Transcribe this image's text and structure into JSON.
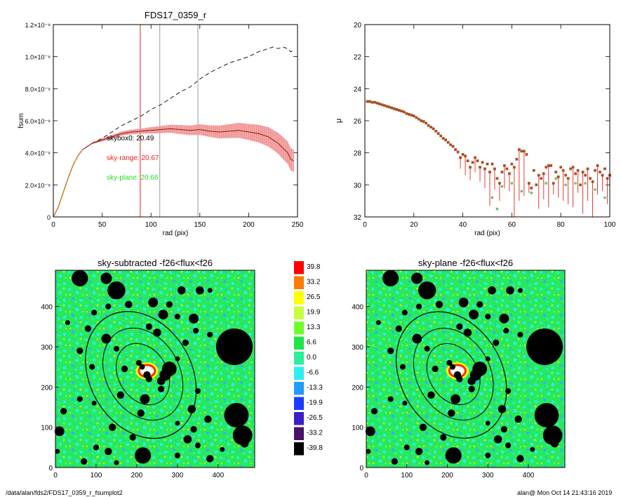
{
  "footer": {
    "path": "/data/alan/fds2/FDS17_0359_r_fsumplot2",
    "stamp": "alan@  Mon Oct 14 21:43:16 2019"
  },
  "colors": {
    "black": "#000000",
    "red_line": "#e8241f",
    "red_band": "#f2a3a3",
    "dark_red": "#8b1a10",
    "orange": "#c8781c",
    "green_text": "#22dd22",
    "grey_line": "#999999",
    "green_field": "#28e85c",
    "cyan_field": "#29f0d8"
  },
  "chart_data": [
    {
      "id": "fsum",
      "type": "line",
      "title": "FDS17_0359_r",
      "xlabel": "rad (pix)",
      "ylabel": "fsum",
      "xlim": [
        0,
        250
      ],
      "ylim": [
        0,
        1.2e-08
      ],
      "x_ticks": [
        0,
        50,
        100,
        150,
        200,
        250
      ],
      "x_tick_labels": [
        "0",
        "50",
        "100",
        "150",
        "200",
        "250"
      ],
      "y_ticks": [
        0,
        2e-09,
        4e-09,
        6e-09,
        8e-09,
        1e-08,
        1.2e-08
      ],
      "y_tick_labels": [
        "0",
        "2.0×10⁻⁹",
        "4.0×10⁻⁹",
        "6.0×10⁻⁹",
        "8.0×10⁻⁹",
        "1.0×10⁻⁸",
        "1.2×10⁻⁸"
      ],
      "vlines": [
        {
          "x": 89,
          "color": "red"
        },
        {
          "x": 109,
          "color": "grey"
        },
        {
          "x": 148,
          "color": "grey"
        }
      ],
      "annotations": [
        {
          "label": "skybox0",
          "value": "20.49",
          "text": "skybox0: 20.49",
          "color": "black"
        },
        {
          "label": "sky-range",
          "value": "20.67",
          "text": "sky-range: 20.67",
          "color": "red"
        },
        {
          "label": "sky-plane",
          "value": "20.66",
          "text": "sky-plane: 20.66",
          "color": "green"
        }
      ],
      "series": [
        {
          "style": "dashed-black",
          "x": [
            0,
            5,
            10,
            15,
            20,
            25,
            30,
            40,
            50,
            60,
            70,
            80,
            90,
            100,
            110,
            120,
            130,
            140,
            150,
            160,
            170,
            180,
            190,
            200,
            210,
            215,
            220,
            225,
            230,
            235,
            240,
            243,
            246
          ],
          "y": [
            0,
            6e-10,
            1.5e-09,
            2.4e-09,
            3.2e-09,
            3.8e-09,
            4.2e-09,
            4.6e-09,
            4.9e-09,
            5.3e-09,
            5.7e-09,
            6e-09,
            6.3e-09,
            6.7e-09,
            7e-09,
            7.4e-09,
            7.8e-09,
            8.1e-09,
            8.6e-09,
            9e-09,
            9.3e-09,
            9.6e-09,
            9.8e-09,
            1e-08,
            1.03e-08,
            1.04e-08,
            1.05e-08,
            1.06e-08,
            1.05e-08,
            1.06e-08,
            1.05e-08,
            1.03e-08,
            1.04e-08
          ]
        },
        {
          "style": "solid-red-with-band",
          "x": [
            0,
            5,
            10,
            15,
            20,
            25,
            30,
            40,
            50,
            60,
            70,
            80,
            90,
            100,
            110,
            120,
            130,
            140,
            150,
            160,
            170,
            180,
            190,
            200,
            210,
            220,
            230,
            235,
            240,
            243,
            246
          ],
          "y": [
            0,
            6e-10,
            1.5e-09,
            2.4e-09,
            3.2e-09,
            3.8e-09,
            4.2e-09,
            4.6e-09,
            4.8e-09,
            5e-09,
            5.2e-09,
            5.3e-09,
            5.35e-09,
            5.4e-09,
            5.45e-09,
            5.5e-09,
            5.45e-09,
            5.4e-09,
            5.45e-09,
            5.35e-09,
            5.3e-09,
            5.35e-09,
            5.4e-09,
            5.3e-09,
            5.2e-09,
            5e-09,
            4.6e-09,
            4.3e-09,
            4e-09,
            3.6e-09,
            3.5e-09
          ],
          "err": [
            0,
            0,
            0,
            0,
            0,
            0,
            0,
            5e-11,
            1e-10,
            1.2e-10,
            1.3e-10,
            1.5e-10,
            1.6e-10,
            2e-10,
            2.2e-10,
            2.5e-10,
            2.8e-10,
            3e-10,
            3.3e-10,
            3.6e-10,
            4e-10,
            4.3e-10,
            4.7e-10,
            5e-10,
            5.5e-10,
            6e-10,
            6.5e-10,
            7e-10,
            7e-10,
            7e-10,
            7e-10
          ]
        }
      ]
    },
    {
      "id": "mu",
      "type": "scatter",
      "xlabel": "rad (pix)",
      "ylabel": "μ",
      "xlim": [
        0,
        100
      ],
      "ylim": [
        32,
        20
      ],
      "x_ticks": [
        0,
        20,
        40,
        60,
        80,
        100
      ],
      "y_ticks": [
        20,
        22,
        24,
        26,
        28,
        30,
        32
      ],
      "points": [
        [
          1,
          24.8
        ],
        [
          2,
          24.8
        ],
        [
          3,
          24.85
        ],
        [
          4,
          24.85
        ],
        [
          5,
          24.9
        ],
        [
          6,
          24.95
        ],
        [
          7,
          25.0
        ],
        [
          8,
          25.05
        ],
        [
          9,
          25.1
        ],
        [
          10,
          25.15
        ],
        [
          11,
          25.2
        ],
        [
          12,
          25.25
        ],
        [
          13,
          25.3
        ],
        [
          14,
          25.35
        ],
        [
          15,
          25.4
        ],
        [
          16,
          25.45
        ],
        [
          17,
          25.55
        ],
        [
          18,
          25.6
        ],
        [
          19,
          25.65
        ],
        [
          20,
          25.7
        ],
        [
          21,
          25.8
        ],
        [
          22,
          25.9
        ],
        [
          23,
          26.0
        ],
        [
          24,
          26.05
        ],
        [
          25,
          26.15
        ],
        [
          26,
          26.3
        ],
        [
          27,
          26.4
        ],
        [
          28,
          26.5
        ],
        [
          29,
          26.65
        ],
        [
          30,
          26.8
        ],
        [
          31,
          26.95
        ],
        [
          32,
          27.1
        ],
        [
          33,
          27.2
        ],
        [
          34,
          27.35
        ],
        [
          35,
          27.5
        ],
        [
          36,
          27.6
        ],
        [
          37,
          27.8
        ],
        [
          38,
          27.95
        ],
        [
          39,
          28.3
        ],
        [
          40,
          28.1
        ],
        [
          41,
          28.2
        ],
        [
          42,
          28.5
        ],
        [
          43,
          28.9
        ],
        [
          44,
          28.6
        ],
        [
          45,
          28.3
        ],
        [
          46,
          28.5
        ],
        [
          47,
          28.9
        ],
        [
          48,
          28.6
        ],
        [
          49,
          29.0
        ],
        [
          50,
          28.7
        ],
        [
          51,
          29.2
        ],
        [
          52,
          28.7
        ],
        [
          53,
          29.0
        ],
        [
          54,
          29.6
        ],
        [
          55,
          29.9
        ],
        [
          56,
          29.2
        ],
        [
          57,
          28.8
        ],
        [
          58,
          29.0
        ],
        [
          59,
          29.3
        ],
        [
          60,
          28.7
        ],
        [
          61,
          28.9
        ],
        [
          62,
          28.4
        ],
        [
          63,
          27.8
        ],
        [
          64,
          27.9
        ],
        [
          65,
          27.9
        ],
        [
          66,
          28.1
        ],
        [
          67,
          29.9
        ],
        [
          68,
          30.2
        ],
        [
          69,
          29.1
        ],
        [
          70,
          30.0
        ],
        [
          71,
          29.4
        ],
        [
          72,
          29.6
        ],
        [
          73,
          29.3
        ],
        [
          74,
          28.9
        ],
        [
          75,
          28.8
        ],
        [
          76,
          28.8
        ],
        [
          77,
          29.9
        ],
        [
          78,
          29.2
        ],
        [
          79,
          29.5
        ],
        [
          80,
          28.9
        ],
        [
          81,
          29.1
        ],
        [
          82,
          29.4
        ],
        [
          83,
          29.6
        ],
        [
          84,
          29.0
        ],
        [
          85,
          28.9
        ],
        [
          86,
          29.3
        ],
        [
          87,
          29.1
        ],
        [
          88,
          30.0
        ],
        [
          89,
          29.2
        ],
        [
          90,
          29.4
        ],
        [
          91,
          29.0
        ],
        [
          92,
          29.6
        ],
        [
          93,
          29.8
        ],
        [
          94,
          29.1
        ],
        [
          95,
          28.8
        ],
        [
          96,
          29.2
        ],
        [
          97,
          29.4
        ],
        [
          98,
          29.0
        ],
        [
          99,
          29.6
        ],
        [
          100,
          29.4
        ]
      ],
      "err_low": [
        [
          39,
          29.0
        ],
        [
          41,
          29.4
        ],
        [
          43,
          29.7
        ],
        [
          45,
          29.2
        ],
        [
          47,
          29.8
        ],
        [
          49,
          30.2
        ],
        [
          51,
          31.3
        ],
        [
          53,
          30.3
        ],
        [
          55,
          31.0
        ],
        [
          57,
          30.2
        ],
        [
          59,
          30.4
        ],
        [
          61,
          32.0
        ],
        [
          63,
          31.0
        ],
        [
          65,
          30.7
        ],
        [
          67,
          30.5
        ],
        [
          71,
          31.5
        ],
        [
          73,
          30.9
        ],
        [
          75,
          31.4
        ],
        [
          77,
          30.6
        ],
        [
          79,
          30.8
        ],
        [
          81,
          31.0
        ],
        [
          83,
          31.2
        ],
        [
          85,
          31.4
        ],
        [
          87,
          30.5
        ],
        [
          89,
          31.8
        ],
        [
          91,
          31.0
        ],
        [
          93,
          32.0
        ],
        [
          95,
          30.6
        ],
        [
          97,
          30.4
        ],
        [
          99,
          31.2
        ]
      ],
      "sparse": [
        [
          52,
          30.8
        ],
        [
          54,
          31.5
        ],
        [
          56,
          30.1
        ],
        [
          60,
          29.9
        ],
        [
          64,
          30.4
        ],
        [
          68,
          30.5
        ],
        [
          74,
          29.9
        ],
        [
          78,
          29.6
        ],
        [
          82,
          30.0
        ],
        [
          86,
          29.9
        ],
        [
          90,
          29.9
        ],
        [
          94,
          30.3
        ],
        [
          98,
          30.8
        ]
      ]
    },
    {
      "id": "map_left",
      "type": "heatmap",
      "title": "sky-subtracted -f26<flux<f26",
      "xlim": [
        0,
        490
      ],
      "ylim": [
        0,
        490
      ],
      "x_ticks": [
        0,
        100,
        200,
        300,
        400
      ],
      "y_ticks": [
        0,
        100,
        200,
        300,
        400
      ],
      "ellipses": [
        {
          "cx": 210,
          "cy": 230,
          "rx": 125,
          "ry": 165,
          "rot": -30
        },
        {
          "cx": 215,
          "cy": 232,
          "rx": 90,
          "ry": 120,
          "rot": -30
        },
        {
          "cx": 215,
          "cy": 232,
          "rx": 60,
          "ry": 80,
          "rot": -30
        }
      ],
      "blobs": [
        [
          60,
          470,
          20
        ],
        [
          125,
          470,
          14
        ],
        [
          150,
          440,
          22
        ],
        [
          180,
          405,
          9
        ],
        [
          240,
          410,
          12
        ],
        [
          310,
          440,
          10
        ],
        [
          355,
          440,
          10
        ],
        [
          380,
          440,
          6
        ],
        [
          280,
          405,
          8
        ],
        [
          95,
          385,
          7
        ],
        [
          130,
          400,
          7
        ],
        [
          30,
          360,
          6
        ],
        [
          80,
          345,
          8
        ],
        [
          125,
          320,
          12
        ],
        [
          150,
          295,
          7
        ],
        [
          230,
          350,
          8
        ],
        [
          250,
          335,
          10
        ],
        [
          265,
          380,
          12
        ],
        [
          300,
          375,
          7
        ],
        [
          340,
          370,
          12
        ],
        [
          345,
          340,
          7
        ],
        [
          320,
          310,
          8
        ],
        [
          380,
          330,
          7
        ],
        [
          440,
          300,
          45
        ],
        [
          300,
          270,
          6
        ],
        [
          270,
          230,
          14
        ],
        [
          280,
          245,
          18
        ],
        [
          260,
          215,
          10
        ],
        [
          230,
          220,
          8
        ],
        [
          205,
          260,
          7
        ],
        [
          170,
          245,
          8
        ],
        [
          160,
          180,
          9
        ],
        [
          210,
          135,
          9
        ],
        [
          220,
          170,
          12
        ],
        [
          260,
          195,
          8
        ],
        [
          350,
          190,
          7
        ],
        [
          335,
          145,
          10
        ],
        [
          375,
          120,
          9
        ],
        [
          445,
          130,
          30
        ],
        [
          460,
          80,
          24
        ],
        [
          465,
          60,
          10
        ],
        [
          340,
          95,
          8
        ],
        [
          225,
          230,
          9
        ],
        [
          60,
          170,
          7
        ],
        [
          95,
          160,
          6
        ],
        [
          140,
          100,
          9
        ],
        [
          190,
          75,
          8
        ],
        [
          215,
          30,
          20
        ],
        [
          130,
          40,
          9
        ],
        [
          100,
          50,
          7
        ],
        [
          70,
          15,
          8
        ],
        [
          150,
          12,
          6
        ],
        [
          325,
          70,
          10
        ],
        [
          350,
          55,
          7
        ],
        [
          380,
          22,
          9
        ],
        [
          300,
          30,
          7
        ],
        [
          410,
          45,
          6
        ],
        [
          20,
          140,
          8
        ],
        [
          10,
          90,
          12
        ],
        [
          5,
          40,
          6
        ],
        [
          300,
          110,
          6
        ],
        [
          90,
          250,
          7
        ],
        [
          60,
          290,
          8
        ]
      ],
      "center_white": [
        225,
        240,
        18
      ]
    },
    {
      "id": "map_right",
      "type": "heatmap",
      "title": "sky-plane -f26<flux<f26",
      "xlim": [
        0,
        490
      ],
      "ylim": [
        0,
        490
      ],
      "x_ticks": [
        0,
        100,
        200,
        300,
        400
      ],
      "y_ticks": [
        0,
        100,
        200,
        300,
        400
      ]
    },
    {
      "id": "colorbar",
      "type": "table",
      "levels": [
        {
          "value": "39.8",
          "color": "#ff0000"
        },
        {
          "value": "33.2",
          "color": "#ff7a00"
        },
        {
          "value": "26.5",
          "color": "#ffff00"
        },
        {
          "value": "19.9",
          "color": "#c8ff3c"
        },
        {
          "value": "13.3",
          "color": "#6eff2a"
        },
        {
          "value": "6.6",
          "color": "#1ee646"
        },
        {
          "value": "0.0",
          "color": "#29f09a"
        },
        {
          "value": "-6.6",
          "color": "#29f0f0"
        },
        {
          "value": "-13.3",
          "color": "#1f9cff"
        },
        {
          "value": "-19.9",
          "color": "#1c3cff"
        },
        {
          "value": "-26.5",
          "color": "#3c1ec8"
        },
        {
          "value": "-33.2",
          "color": "#4a1266"
        },
        {
          "value": "-39.8",
          "color": "#000000"
        }
      ]
    }
  ]
}
